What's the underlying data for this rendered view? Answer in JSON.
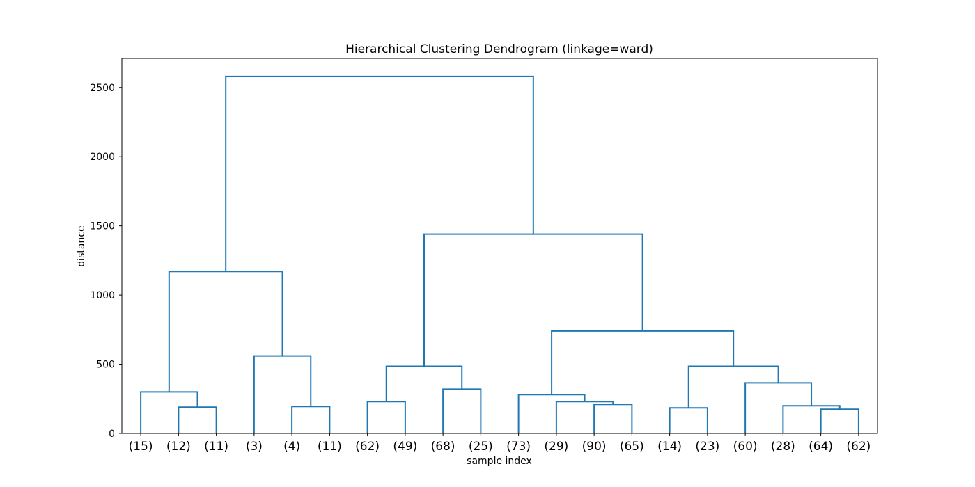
{
  "chart_data": {
    "type": "dendrogram",
    "title": "Hierarchical Clustering Dendrogram (linkage=ward)",
    "xlabel": "sample index",
    "ylabel": "distance",
    "ylim": [
      0,
      2710
    ],
    "yticks": [
      0,
      500,
      1000,
      1500,
      2000,
      2500
    ],
    "ytick_labels": [
      "0",
      "500",
      "1000",
      "1500",
      "2000",
      "2500"
    ],
    "leaves": [
      "(15)",
      "(12)",
      "(11)",
      "(3)",
      "(4)",
      "(11)",
      "(62)",
      "(49)",
      "(68)",
      "(25)",
      "(73)",
      "(29)",
      "(90)",
      "(65)",
      "(14)",
      "(23)",
      "(60)",
      "(28)",
      "(64)",
      "(62)"
    ],
    "line_color": "#1f77b4",
    "grid": false,
    "links": [
      {
        "left": 1,
        "right": 2,
        "height": 190
      },
      {
        "left": 0,
        "right": "L0",
        "height": 300
      },
      {
        "left": 4,
        "right": 5,
        "height": 195
      },
      {
        "left": 3,
        "right": "L2",
        "height": 560
      },
      {
        "left": "L1",
        "right": "L3",
        "height": 1170
      },
      {
        "left": 6,
        "right": 7,
        "height": 230
      },
      {
        "left": 8,
        "right": 9,
        "height": 320
      },
      {
        "left": "L5",
        "right": "L6",
        "height": 485
      },
      {
        "left": 12,
        "right": 13,
        "height": 210
      },
      {
        "left": 11,
        "right": "L8",
        "height": 230
      },
      {
        "left": 10,
        "right": "L9",
        "height": 280
      },
      {
        "left": 14,
        "right": 15,
        "height": 185
      },
      {
        "left": 18,
        "right": 19,
        "height": 175
      },
      {
        "left": 17,
        "right": "L12",
        "height": 200
      },
      {
        "left": 16,
        "right": "L13",
        "height": 365
      },
      {
        "left": "L11",
        "right": "L14",
        "height": 485
      },
      {
        "left": "L10",
        "right": "L15",
        "height": 740
      },
      {
        "left": "L7",
        "right": "L16",
        "height": 1440
      },
      {
        "left": "L4",
        "right": "L17",
        "height": 2580
      }
    ]
  }
}
